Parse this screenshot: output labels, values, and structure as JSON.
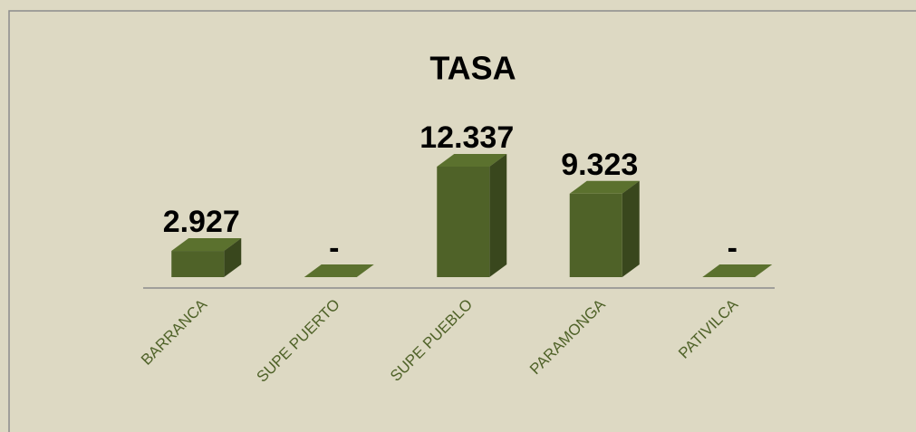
{
  "chart_data": {
    "type": "bar3d",
    "title": "TASA",
    "categories": [
      "BARRANCA",
      "SUPE PUERTO",
      "SUPE PUEBLO",
      "PARAMONGA",
      "PATIVILCA"
    ],
    "values": [
      2.927,
      0,
      12.337,
      9.323,
      0
    ],
    "value_labels": [
      "2.927",
      "-",
      "12.337",
      "9.323",
      "-"
    ],
    "color": "#4f6228"
  }
}
